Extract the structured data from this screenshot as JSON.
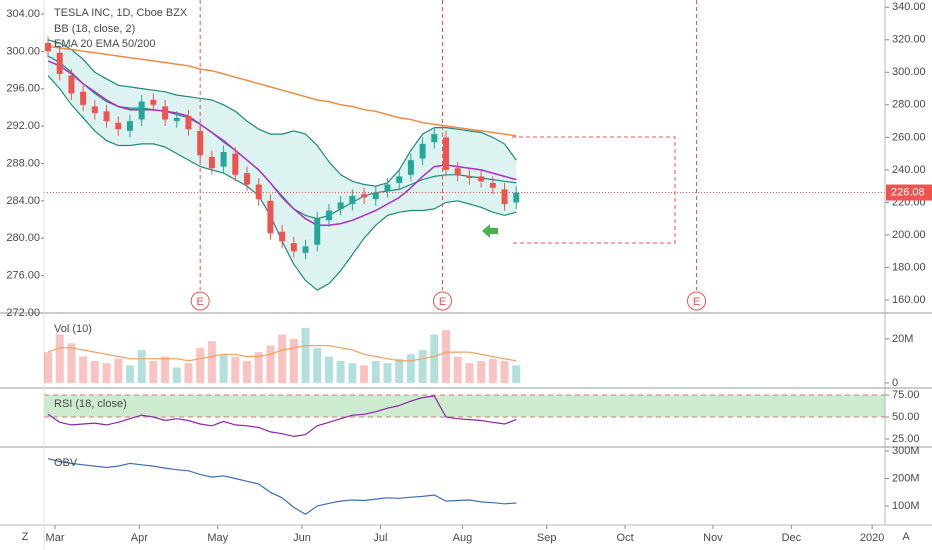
{
  "toolbar": [
    "Z",
    "A"
  ],
  "chart_data": [
    {
      "type": "candlestick",
      "title": "TESLA INC, 1D, Cboe BZX",
      "up_color": "#26a69a",
      "down_color": "#ef5350",
      "open": [
        318,
        312,
        298,
        288,
        279,
        276,
        269,
        264,
        271,
        283,
        279,
        270,
        273,
        264,
        248,
        242,
        250,
        238,
        231,
        221,
        202,
        195,
        189,
        194,
        209,
        216,
        219,
        225,
        222,
        227,
        232,
        237,
        247,
        257,
        260,
        241,
        236,
        236,
        232,
        228,
        220
      ],
      "high": [
        322,
        316,
        302,
        292,
        283,
        280,
        273,
        274,
        286,
        287,
        283,
        276,
        277,
        268,
        252,
        255,
        254,
        242,
        235,
        225,
        206,
        199,
        197,
        214,
        219,
        224,
        228,
        229,
        230,
        235,
        240,
        250,
        260,
        266,
        264,
        245,
        240,
        240,
        236,
        232,
        230
      ],
      "low": [
        309,
        295,
        283,
        276,
        271,
        266,
        261,
        260,
        267,
        276,
        267,
        266,
        261,
        245,
        237,
        238,
        233,
        227,
        218,
        197,
        192,
        186,
        185,
        190,
        205,
        212,
        215,
        219,
        218,
        223,
        228,
        233,
        243,
        253,
        236,
        233,
        231,
        229,
        225,
        215,
        216
      ],
      "close": [
        313,
        299,
        287,
        280,
        275,
        270,
        265,
        270,
        282,
        280,
        271,
        272,
        265,
        249,
        241,
        251,
        237,
        231,
        222,
        201,
        196,
        190,
        193,
        210,
        215,
        220,
        224,
        223,
        226,
        231,
        236,
        246,
        256,
        262,
        240,
        237,
        235,
        233,
        229,
        219,
        226.08
      ],
      "bb": {
        "name": "BB (18, close, 2)",
        "color": "#1e8a7a",
        "fill": "#dcf3f1",
        "upper": [
          320,
          318,
          314,
          308,
          300,
          296,
          292,
          291,
          290,
          289,
          288,
          286,
          285,
          284,
          283,
          280,
          276,
          270,
          265,
          262,
          262,
          264,
          262,
          255,
          245,
          237,
          233,
          231,
          230,
          232,
          240,
          252,
          262,
          266,
          266,
          265,
          264,
          263,
          260,
          256,
          246
        ],
        "basis": [
          310,
          306,
          300,
          293,
          287,
          282,
          279,
          278,
          278,
          277,
          276,
          274,
          272,
          268,
          263,
          257,
          252,
          246,
          240,
          232,
          224,
          216,
          212,
          210,
          212,
          216,
          220,
          224,
          226,
          227,
          228,
          231,
          234,
          236,
          237,
          237,
          236,
          235,
          234,
          233,
          232
        ],
        "lower": [
          298,
          290,
          280,
          272,
          264,
          258,
          255,
          255,
          256,
          256,
          254,
          250,
          246,
          242,
          240,
          238,
          234,
          230,
          224,
          212,
          196,
          182,
          172,
          166,
          170,
          178,
          188,
          198,
          206,
          212,
          214,
          215,
          215,
          216,
          220,
          221,
          219,
          217,
          214,
          212,
          214
        ]
      },
      "ema": {
        "name": "EMA 20 EMA 50/200",
        "series": [
          {
            "color": "#b02cc4",
            "values": [
              307,
              304,
              299,
              293,
              288,
              283,
              279,
              277,
              277,
              277,
              276,
              275,
              273,
              268,
              263,
              258,
              252,
              246,
              240,
              232,
              223,
              216,
              210,
              206,
              206,
              207,
              209,
              212,
              215,
              219,
              223,
              229,
              236,
              242,
              243,
              242,
              241,
              240,
              238,
              236,
              234
            ]
          },
          {
            "color": "#f08a44",
            "values": [
              316,
              315,
              314,
              313,
              312,
              311,
              310,
              309,
              308,
              307,
              306,
              305,
              304,
              302,
              301,
              299,
              297,
              295,
              293,
              291,
              289,
              287,
              285,
              283,
              282,
              280,
              279,
              277,
              276,
              274,
              272,
              271,
              269,
              268,
              267,
              266,
              265,
              264,
              263,
              262,
              261
            ]
          }
        ]
      },
      "last_price": 226.08,
      "last_price_color": "#ef5350",
      "events": [
        {
          "label": "E",
          "x": 13
        },
        {
          "label": "E",
          "x": 33.7
        },
        {
          "label": "E",
          "x": 55.4
        }
      ],
      "event_color": "#ef5350",
      "xlim": [
        0,
        71.5
      ],
      "xticks": [
        {
          "value": 0.6,
          "label": "Mar"
        },
        {
          "value": 7.8,
          "label": "Apr"
        },
        {
          "value": 14.5,
          "label": "May"
        },
        {
          "value": 21.7,
          "label": "Jun"
        },
        {
          "value": 28.4,
          "label": "Jul"
        },
        {
          "value": 35.4,
          "label": "Aug"
        },
        {
          "value": 42.6,
          "label": "Sep"
        },
        {
          "value": 49.3,
          "label": "Oct"
        },
        {
          "value": 56.8,
          "label": "Nov"
        },
        {
          "value": 63.5,
          "label": "Dec"
        },
        {
          "value": 70.4,
          "label": "2020"
        }
      ],
      "ylim": [
        152,
        342
      ],
      "yticks": [
        {
          "value": 340,
          "label": "340.00"
        },
        {
          "value": 320,
          "label": "320.00"
        },
        {
          "value": 300,
          "label": "300.00"
        },
        {
          "value": 280,
          "label": "280.00"
        },
        {
          "value": 260,
          "label": "260.00"
        },
        {
          "value": 240,
          "label": "240.00"
        },
        {
          "value": 220,
          "label": "220.00"
        },
        {
          "value": 200,
          "label": "200.00"
        },
        {
          "value": 180,
          "label": "180.00"
        },
        {
          "value": 160,
          "label": "160.00"
        }
      ],
      "y2lim": [
        272,
        305.07
      ],
      "y2ticks": [
        {
          "value": 304,
          "label": "304.00"
        },
        {
          "value": 300,
          "label": "300.00"
        },
        {
          "value": 296,
          "label": "296.00"
        },
        {
          "value": 292,
          "label": "292.00"
        },
        {
          "value": 288,
          "label": "288.00"
        },
        {
          "value": 284,
          "label": "284.00"
        },
        {
          "value": 280,
          "label": "280.00"
        },
        {
          "value": 276,
          "label": "276.00"
        },
        {
          "value": 272,
          "label": "272.00"
        }
      ],
      "grid": false
    },
    {
      "type": "bar",
      "title": "Vol (10)",
      "up_color": "rgba(38,166,154,0.35)",
      "down_color": "rgba(239,83,80,0.35)",
      "values": [
        14000000,
        22000000,
        18000000,
        12000000,
        10000000,
        9000000,
        11000000,
        8000000,
        15000000,
        10000000,
        12000000,
        7000000,
        9000000,
        16000000,
        19000000,
        13000000,
        12000000,
        10000000,
        14000000,
        17000000,
        22000000,
        20000000,
        25000000,
        16000000,
        12000000,
        10000000,
        9000000,
        8000000,
        10000000,
        9000000,
        11000000,
        13000000,
        15000000,
        22000000,
        24000000,
        12000000,
        9000000,
        10000000,
        11000000,
        10000000,
        8000000
      ],
      "ma": [
        14000000,
        16000000,
        16000000,
        15000000,
        14000000,
        13000000,
        12000000,
        11000000,
        11000000,
        11000000,
        11000000,
        11000000,
        10000000,
        11000000,
        12000000,
        13000000,
        13000000,
        12000000,
        12000000,
        13000000,
        15000000,
        16000000,
        17000000,
        17000000,
        17000000,
        16000000,
        15000000,
        13000000,
        12000000,
        11000000,
        10000000,
        10000000,
        11000000,
        12000000,
        14000000,
        14000000,
        14000000,
        13000000,
        12000000,
        11000000,
        10000000
      ],
      "ma_color": "#f0a060",
      "ylim": [
        -2300000,
        31800000
      ],
      "yticks": [
        0,
        {
          "value": 20000000,
          "label": "20M"
        }
      ],
      "grid": false
    },
    {
      "type": "line",
      "title": "RSI (18, close)",
      "color": "#8e24aa",
      "values": [
        53,
        44,
        41,
        42,
        43,
        41,
        44,
        48,
        52,
        50,
        46,
        48,
        46,
        42,
        40,
        45,
        41,
        40,
        38,
        33,
        31,
        28,
        30,
        40,
        44,
        48,
        52,
        53,
        56,
        60,
        63,
        68,
        72,
        74,
        50,
        48,
        47,
        46,
        44,
        42,
        47
      ],
      "band": [
        50,
        75
      ],
      "band_color": "#cdebcf",
      "band_line_color": "#e57373",
      "ylim": [
        15.9,
        81.8
      ],
      "yticks": [
        {
          "value": 75,
          "label": "75.00"
        },
        {
          "value": 50,
          "label": "50.00"
        },
        {
          "value": 25,
          "label": "25.00"
        }
      ],
      "grid": false
    },
    {
      "type": "line",
      "title": "OBV",
      "color": "#3f6fb5",
      "values": [
        272000000,
        262000000,
        255000000,
        250000000,
        245000000,
        240000000,
        245000000,
        255000000,
        250000000,
        245000000,
        238000000,
        232000000,
        228000000,
        215000000,
        205000000,
        210000000,
        200000000,
        190000000,
        180000000,
        150000000,
        130000000,
        95000000,
        70000000,
        100000000,
        110000000,
        118000000,
        122000000,
        120000000,
        125000000,
        130000000,
        128000000,
        132000000,
        135000000,
        140000000,
        118000000,
        120000000,
        122000000,
        115000000,
        112000000,
        108000000,
        111000000
      ],
      "ylim": [
        31000000,
        311000000
      ],
      "yticks": [
        {
          "value": 100000000,
          "label": "100M"
        },
        {
          "value": 200000000,
          "label": "200M"
        },
        {
          "value": 300000000,
          "label": "300M"
        }
      ],
      "grid": false
    }
  ]
}
